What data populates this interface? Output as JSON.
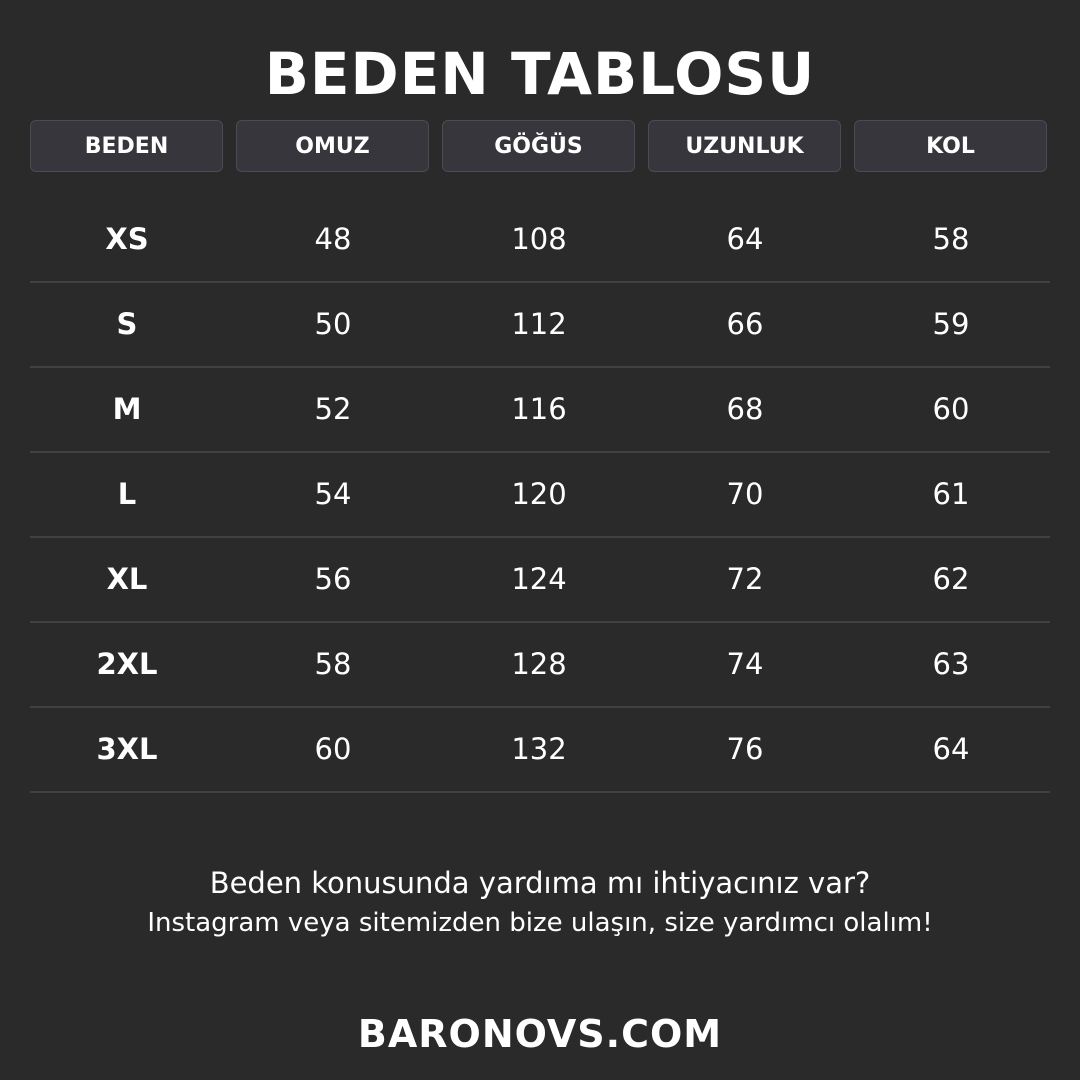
{
  "title": "BEDEN TABLOSU",
  "headers": [
    "BEDEN",
    "OMUZ",
    "GÖĞÜS",
    "UZUNLUK",
    "KOL"
  ],
  "rows": [
    [
      "XS",
      "48",
      "108",
      "64",
      "58"
    ],
    [
      "S",
      "50",
      "112",
      "66",
      "59"
    ],
    [
      "M",
      "52",
      "116",
      "68",
      "60"
    ],
    [
      "L",
      "54",
      "120",
      "70",
      "61"
    ],
    [
      "XL",
      "56",
      "124",
      "72",
      "62"
    ],
    [
      "2XL",
      "58",
      "128",
      "74",
      "63"
    ],
    [
      "3XL",
      "60",
      "132",
      "76",
      "64"
    ]
  ],
  "help": {
    "line1": "Beden konusunda yardıma mı ihtiyacınız var?",
    "line2": "Instagram veya sitemizden bize ulaşın, size yardımcı olalım!"
  },
  "brand": "BARONOVS.COM",
  "colors": {
    "background": "#2a2a2a",
    "header_bg": "#37363c",
    "divider": "#414145",
    "text": "#ffffff"
  }
}
